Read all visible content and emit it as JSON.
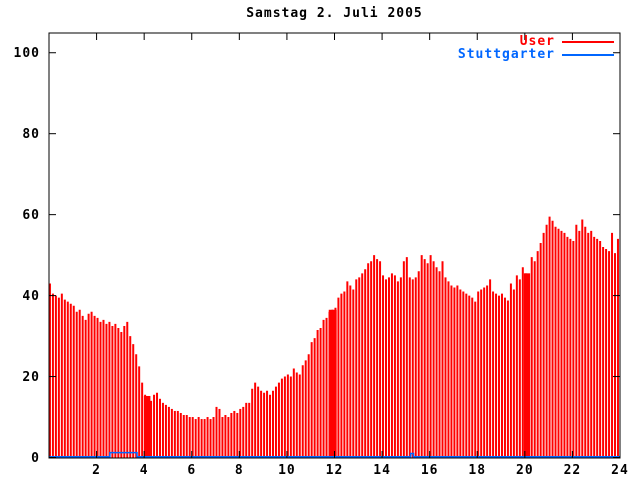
{
  "chart_data": {
    "type": "bar",
    "style": "impulses",
    "title": "Samstag 2. Juli 2005",
    "xlabel": "",
    "ylabel": "",
    "xlim": [
      0,
      24
    ],
    "ylim": [
      0,
      105
    ],
    "x_ticks": [
      2,
      4,
      6,
      8,
      10,
      12,
      14,
      16,
      18,
      20,
      22,
      24
    ],
    "y_ticks": [
      0,
      20,
      40,
      60,
      80,
      100
    ],
    "grid": false,
    "legend_position": "top-right-inside",
    "x_step_hours": 0.125,
    "series": [
      {
        "name": "User",
        "color": "#ff0000",
        "style": "impulses",
        "values": [
          43,
          40.5,
          40,
          39.5,
          40.5,
          39,
          38.5,
          38,
          37.5,
          36,
          36.5,
          35,
          34,
          35.5,
          36,
          35,
          34.5,
          33.5,
          34,
          33,
          33.5,
          32.5,
          33,
          32,
          31,
          32.5,
          33.5,
          30,
          28,
          25.5,
          22.5,
          18.5,
          15.5,
          15,
          14,
          15.5,
          16,
          14.5,
          13.5,
          13,
          12.5,
          12,
          11.5,
          11.5,
          11,
          10.5,
          10.5,
          10,
          10,
          9.5,
          10,
          9.5,
          9.5,
          10,
          9.5,
          10,
          12.5,
          12,
          10,
          10.5,
          10,
          11,
          11.5,
          11,
          12,
          12.5,
          13.5,
          13.5,
          17,
          18.5,
          17.5,
          16.5,
          16,
          16.5,
          15.5,
          16.5,
          17.5,
          18.5,
          19.5,
          20,
          20.5,
          20,
          22,
          21,
          20.5,
          22.8,
          24,
          25.5,
          28.5,
          29.5,
          31.5,
          32,
          34,
          34.5,
          36,
          36.5,
          37,
          39.5,
          40.5,
          41,
          43.5,
          42.5,
          41.5,
          44,
          44.5,
          45.5,
          46.5,
          48,
          48.5,
          50,
          49,
          48.5,
          45,
          44,
          44.5,
          45.5,
          45,
          43.5,
          44.5,
          48.5,
          49.5,
          44.5,
          44,
          44.5,
          46,
          50,
          49,
          48,
          50,
          48.5,
          47,
          46,
          48.5,
          44.5,
          43.5,
          42.5,
          42,
          42.5,
          41.5,
          41,
          40.5,
          40,
          39.5,
          38.5,
          41,
          41.5,
          42,
          42.5,
          44,
          41,
          40.5,
          40,
          40.5,
          39.5,
          38.8,
          43,
          41.5,
          45,
          44,
          47,
          45.5,
          45,
          49.5,
          48.5,
          51,
          53,
          55.5,
          57.5,
          59.5,
          58.5,
          57,
          56.5,
          56,
          55.5,
          54.5,
          54,
          53.5,
          57.5,
          56,
          58.8,
          57,
          55.5,
          56,
          54.5,
          54,
          53.5,
          52,
          51.5,
          51,
          55.5,
          50.5,
          54
        ],
        "solid_blocks": [
          {
            "from": 4.03,
            "to": 4.22,
            "value": 15.2
          },
          {
            "from": 11.8,
            "to": 12.05,
            "value": 36.5
          },
          {
            "from": 20.0,
            "to": 20.18,
            "value": 45.5
          }
        ]
      },
      {
        "name": "Stuttgarter",
        "color": "#0066ff",
        "style": "line",
        "segments": [
          {
            "from": 0,
            "to": 2.56,
            "value": 0.2
          },
          {
            "from": 2.56,
            "to": 3.7,
            "value": 1.2
          },
          {
            "from": 3.7,
            "to": 15.2,
            "value": 0.2
          },
          {
            "from": 15.2,
            "to": 15.32,
            "value": 1.0
          },
          {
            "from": 15.32,
            "to": 24,
            "value": 0.2
          }
        ]
      }
    ],
    "axis_color": "#000000",
    "background_color": "#ffffff"
  }
}
